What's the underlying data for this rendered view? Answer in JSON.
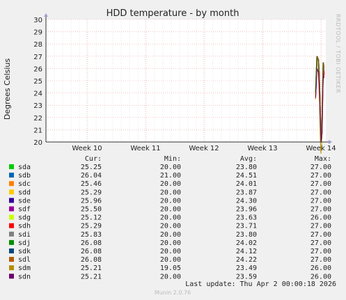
{
  "chart_data": {
    "type": "line",
    "title": "HDD temperature - by month",
    "ylabel": "Degrees Celsius",
    "ylim": [
      20,
      30
    ],
    "yticks": [
      "20",
      "21",
      "22",
      "23",
      "24",
      "25",
      "26",
      "27",
      "28",
      "29",
      "30"
    ],
    "xticks": [
      "Week 10",
      "Week 11",
      "Week 12",
      "Week 13",
      "Week 14"
    ],
    "grid": true,
    "legend_placement": "bottom",
    "side_label": "RRDTOOL / TOBI OETIKER",
    "columns": [
      "Cur:",
      "Min:",
      "Avg:",
      "Max:"
    ],
    "series": [
      {
        "name": "sda",
        "color": "#00cc00",
        "cur": "25.25",
        "min": "20.00",
        "avg": "23.80",
        "max": "27.00"
      },
      {
        "name": "sdb",
        "color": "#0066b3",
        "cur": "26.04",
        "min": "21.00",
        "avg": "24.51",
        "max": "27.00"
      },
      {
        "name": "sdc",
        "color": "#ff8000",
        "cur": "25.46",
        "min": "20.00",
        "avg": "24.01",
        "max": "27.00"
      },
      {
        "name": "sdd",
        "color": "#ffcc00",
        "cur": "25.29",
        "min": "20.00",
        "avg": "23.87",
        "max": "27.00"
      },
      {
        "name": "sde",
        "color": "#330099",
        "cur": "25.96",
        "min": "20.00",
        "avg": "24.30",
        "max": "27.00"
      },
      {
        "name": "sdf",
        "color": "#990099",
        "cur": "25.50",
        "min": "20.00",
        "avg": "23.96",
        "max": "27.00"
      },
      {
        "name": "sdg",
        "color": "#ccff00",
        "cur": "25.12",
        "min": "20.00",
        "avg": "23.63",
        "max": "26.00"
      },
      {
        "name": "sdh",
        "color": "#ff0000",
        "cur": "25.29",
        "min": "20.00",
        "avg": "23.71",
        "max": "27.00"
      },
      {
        "name": "sdi",
        "color": "#808080",
        "cur": "25.83",
        "min": "20.00",
        "avg": "23.80",
        "max": "27.00"
      },
      {
        "name": "sdj",
        "color": "#008f00",
        "cur": "26.08",
        "min": "20.00",
        "avg": "24.02",
        "max": "27.00"
      },
      {
        "name": "sdk",
        "color": "#00487d",
        "cur": "26.08",
        "min": "20.00",
        "avg": "24.12",
        "max": "27.00"
      },
      {
        "name": "sdl",
        "color": "#b35a00",
        "cur": "26.08",
        "min": "20.00",
        "avg": "24.22",
        "max": "27.00"
      },
      {
        "name": "sdm",
        "color": "#b38f00",
        "cur": "25.21",
        "min": "19.05",
        "avg": "23.49",
        "max": "26.00"
      },
      {
        "name": "sdn",
        "color": "#6b006b",
        "cur": "25.21",
        "min": "20.00",
        "avg": "23.59",
        "max": "26.00"
      }
    ]
  },
  "last_update": "Last update: Thu Apr  2 00:00:18 2026",
  "footer": "Munin 2.0.76"
}
